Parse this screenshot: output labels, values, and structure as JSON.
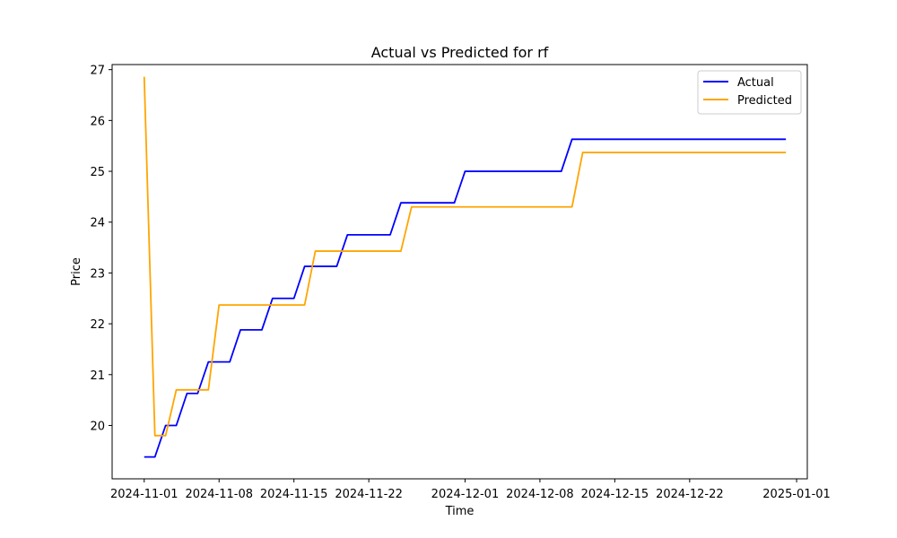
{
  "chart_data": {
    "type": "line",
    "title": "Actual vs Predicted for rf",
    "xlabel": "Time",
    "ylabel": "Price",
    "x_axis_type": "date",
    "xlim": [
      "2024-10-29",
      "2025-01-02"
    ],
    "ylim": [
      18.95,
      27.1
    ],
    "x_ticks": [
      "2024-11-01",
      "2024-11-08",
      "2024-11-15",
      "2024-11-22",
      "2024-12-01",
      "2024-12-08",
      "2024-12-15",
      "2024-12-22",
      "2025-01-01"
    ],
    "y_ticks": [
      20,
      21,
      22,
      23,
      24,
      25,
      26,
      27
    ],
    "legend_position": "top-right",
    "grid": false,
    "series": [
      {
        "name": "Actual",
        "color": "#0000ff",
        "points": [
          [
            "2024-11-01",
            19.38
          ],
          [
            "2024-11-02",
            19.38
          ],
          [
            "2024-11-03",
            20.0
          ],
          [
            "2024-11-04",
            20.0
          ],
          [
            "2024-11-05",
            20.63
          ],
          [
            "2024-11-06",
            20.63
          ],
          [
            "2024-11-07",
            21.25
          ],
          [
            "2024-11-08",
            21.25
          ],
          [
            "2024-11-09",
            21.25
          ],
          [
            "2024-11-10",
            21.88
          ],
          [
            "2024-11-11",
            21.88
          ],
          [
            "2024-11-12",
            21.88
          ],
          [
            "2024-11-13",
            22.5
          ],
          [
            "2024-11-14",
            22.5
          ],
          [
            "2024-11-15",
            22.5
          ],
          [
            "2024-11-16",
            23.13
          ],
          [
            "2024-11-17",
            23.13
          ],
          [
            "2024-11-18",
            23.13
          ],
          [
            "2024-11-19",
            23.13
          ],
          [
            "2024-11-20",
            23.75
          ],
          [
            "2024-11-21",
            23.75
          ],
          [
            "2024-11-22",
            23.75
          ],
          [
            "2024-11-23",
            23.75
          ],
          [
            "2024-11-24",
            23.75
          ],
          [
            "2024-11-25",
            24.38
          ],
          [
            "2024-11-26",
            24.38
          ],
          [
            "2024-11-27",
            24.38
          ],
          [
            "2024-11-28",
            24.38
          ],
          [
            "2024-11-29",
            24.38
          ],
          [
            "2024-11-30",
            24.38
          ],
          [
            "2024-12-01",
            25.0
          ],
          [
            "2024-12-10",
            25.0
          ],
          [
            "2024-12-11",
            25.63
          ],
          [
            "2024-12-31",
            25.63
          ]
        ]
      },
      {
        "name": "Predicted",
        "color": "#ffa500",
        "points": [
          [
            "2024-11-01",
            26.86
          ],
          [
            "2024-11-02",
            19.8
          ],
          [
            "2024-11-03",
            19.8
          ],
          [
            "2024-11-04",
            20.7
          ],
          [
            "2024-11-05",
            20.7
          ],
          [
            "2024-11-06",
            20.7
          ],
          [
            "2024-11-07",
            20.7
          ],
          [
            "2024-11-08",
            22.37
          ],
          [
            "2024-11-16",
            22.37
          ],
          [
            "2024-11-17",
            23.43
          ],
          [
            "2024-11-25",
            23.43
          ],
          [
            "2024-11-26",
            24.3
          ],
          [
            "2024-12-11",
            24.3
          ],
          [
            "2024-12-12",
            25.37
          ],
          [
            "2024-12-31",
            25.37
          ]
        ]
      }
    ]
  }
}
